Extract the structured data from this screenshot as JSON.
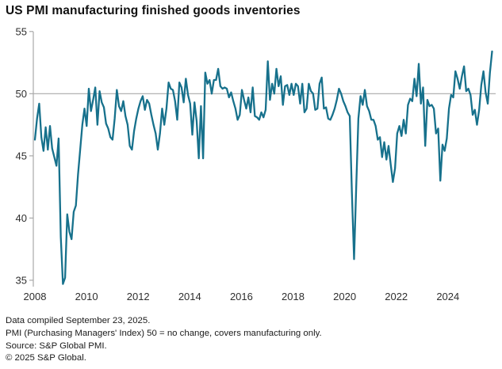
{
  "window": {
    "title": "US PMI manufacturing finished goods inventories"
  },
  "chart_data": {
    "type": "line",
    "title": "US PMI manufacturing finished goods inventories",
    "xlabel": "",
    "ylabel": "",
    "ylim": [
      35,
      55
    ],
    "y_ticks": [
      55,
      50,
      45,
      40,
      35
    ],
    "x_tick_years": [
      2008,
      2010,
      2012,
      2014,
      2016,
      2018,
      2020,
      2022,
      2024
    ],
    "x_range_years": [
      2008.0,
      2025.75
    ],
    "reference_line_y": 50,
    "grid": "single horizontal reference line at 50",
    "legend_position": "none",
    "series": [
      {
        "name": "US PMI manufacturing finished goods inventories",
        "frequency": "monthly",
        "start": "2008-01",
        "end": "2025-09",
        "values": [
          46.3,
          48.0,
          49.2,
          46.5,
          45.4,
          47.3,
          45.5,
          47.4,
          45.6,
          44.9,
          44.2,
          46.4,
          38.5,
          34.7,
          35.2,
          40.3,
          38.9,
          38.3,
          40.5,
          41.0,
          43.5,
          45.5,
          47.5,
          48.8,
          47.4,
          50.4,
          48.6,
          49.5,
          50.5,
          47.5,
          50.2,
          49.3,
          48.9,
          47.6,
          47.2,
          46.5,
          46.3,
          48.0,
          50.3,
          49.0,
          48.6,
          49.4,
          48.2,
          47.5,
          45.8,
          45.5,
          47.0,
          48.0,
          48.8,
          49.4,
          49.8,
          48.7,
          49.5,
          49.2,
          48.3,
          47.5,
          46.8,
          45.5,
          46.8,
          48.8,
          47.5,
          48.8,
          50.9,
          50.4,
          50.3,
          49.4,
          47.9,
          50.9,
          50.5,
          49.3,
          51.2,
          49.9,
          49.2,
          46.7,
          49.3,
          47.8,
          44.8,
          49.0,
          44.8,
          51.7,
          50.8,
          51.1,
          50.0,
          51.1,
          51.1,
          52.0,
          50.6,
          50.4,
          50.5,
          50.4,
          49.7,
          50.1,
          49.4,
          48.8,
          47.9,
          48.3,
          50.3,
          49.5,
          48.8,
          49.7,
          48.5,
          50.5,
          48.2,
          48.1,
          47.9,
          48.5,
          48.1,
          48.7,
          52.6,
          49.5,
          50.8,
          50.0,
          52.0,
          50.6,
          51.4,
          49.1,
          50.6,
          50.7,
          49.9,
          50.8,
          49.9,
          50.8,
          50.6,
          49.2,
          50.8,
          48.5,
          48.8,
          50.8,
          50.2,
          50.0,
          48.7,
          48.8,
          50.8,
          51.3,
          48.8,
          48.9,
          48.0,
          47.9,
          48.3,
          48.8,
          49.5,
          50.4,
          50.0,
          49.4,
          49.0,
          48.5,
          48.2,
          42.0,
          36.7,
          42.5,
          48.0,
          49.8,
          49.1,
          50.3,
          49.0,
          48.6,
          47.9,
          47.9,
          47.4,
          46.3,
          46.5,
          44.9,
          46.1,
          44.7,
          45.8,
          44.3,
          42.9,
          44.0,
          46.8,
          47.4,
          46.6,
          47.9,
          46.8,
          49.1,
          49.6,
          49.4,
          51.2,
          49.8,
          52.4,
          49.2,
          50.5,
          45.8,
          49.5,
          49.0,
          49.1,
          48.8,
          46.8,
          47.2,
          43.0,
          45.9,
          45.4,
          46.4,
          48.8,
          49.9,
          49.7,
          51.8,
          51.2,
          50.4,
          51.4,
          52.2,
          50.2,
          50.4,
          49.9,
          48.3,
          48.7,
          47.5,
          48.7,
          50.7,
          51.8,
          50.1,
          49.2,
          51.7,
          53.4
        ]
      }
    ]
  },
  "colors": {
    "line": "#17718c",
    "reference_line": "#a9a9a9",
    "axis": "#a9a9a9",
    "title_text": "#111111",
    "tick_text": "#2e2e2e",
    "footnote_text": "#1a1a1a",
    "background": "#ffffff"
  },
  "footnotes": [
    "Data compiled September 23, 2025.",
    "PMI (Purchasing Managers' Index) 50 = no change, covers manufacturing only.",
    "Source: S&P Global PMI.",
    "© 2025 S&P Global."
  ]
}
